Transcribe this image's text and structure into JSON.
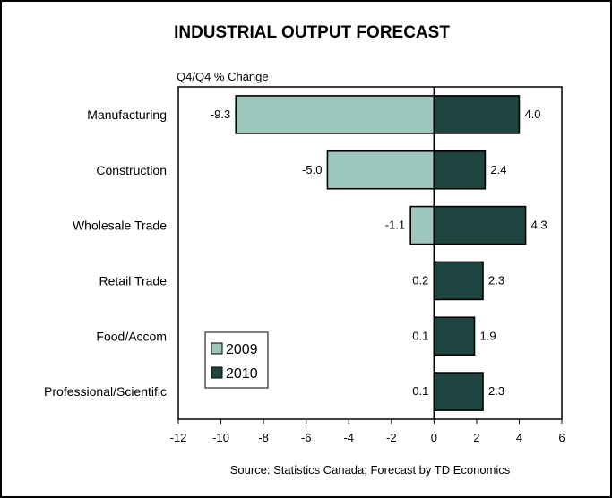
{
  "chart_data": {
    "type": "bar",
    "orientation": "horizontal",
    "title": "INDUSTRIAL OUTPUT FORECAST",
    "ylabel": "Q4/Q4 % Change",
    "source": "Source: Statistics Canada; Forecast by TD Economics",
    "categories": [
      "Manufacturing",
      "Construction",
      "Wholesale Trade",
      "Retail Trade",
      "Food/Accom",
      "Professional/Scientific"
    ],
    "series": [
      {
        "name": "2009",
        "color": "#9dc6bc",
        "values": [
          -9.3,
          -5.0,
          -1.1,
          0.2,
          0.1,
          0.1
        ],
        "labels": [
          "-9.3",
          "-5.0",
          "-1.1",
          "0.2",
          "0.1",
          "0.1"
        ]
      },
      {
        "name": "2010",
        "color": "#1f4540",
        "values": [
          4.0,
          2.4,
          4.3,
          2.3,
          1.9,
          2.3
        ],
        "labels": [
          "4.0",
          "2.4",
          "4.3",
          "2.3",
          "1.9",
          "2.3"
        ]
      }
    ],
    "xlim": [
      -12,
      6
    ],
    "xticks": [
      -12,
      -10,
      -8,
      -6,
      -4,
      -2,
      0,
      2,
      4,
      6
    ],
    "grid": false,
    "legend_position": "bottom-left"
  }
}
